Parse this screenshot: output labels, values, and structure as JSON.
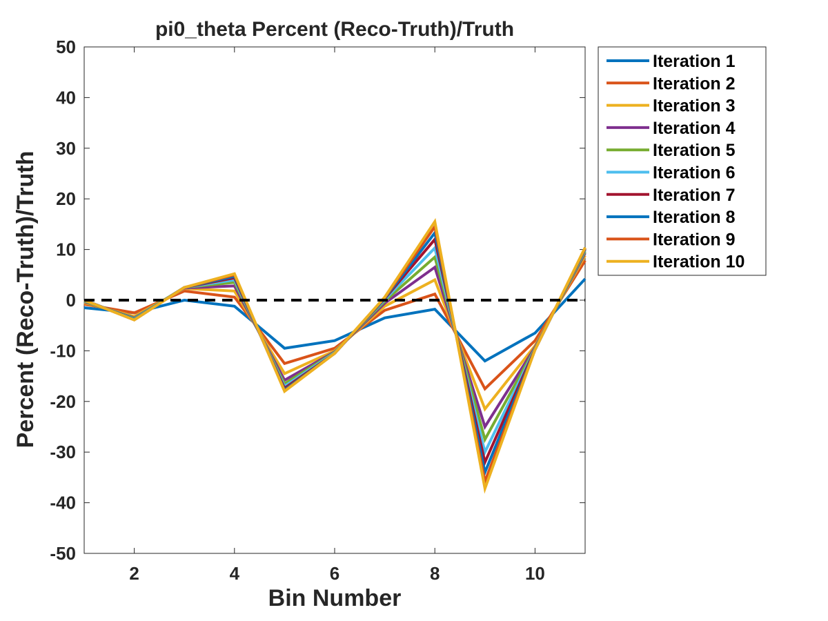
{
  "chart_data": {
    "type": "line",
    "title": "pi0_theta Percent (Reco-Truth)/Truth",
    "xlabel": "Bin Number",
    "ylabel": "Percent (Reco-Truth)/Truth",
    "xlim": [
      1,
      11
    ],
    "ylim": [
      -50,
      50
    ],
    "xticks": [
      2,
      4,
      6,
      8,
      10
    ],
    "yticks": [
      -50,
      -40,
      -30,
      -20,
      -10,
      0,
      10,
      20,
      30,
      40,
      50
    ],
    "grid": false,
    "legend_position": "outside-top-right",
    "reference_line": {
      "y": 0,
      "style": "dashed",
      "color": "#000000"
    },
    "x": [
      1,
      2,
      3,
      4,
      5,
      6,
      7,
      8,
      9,
      10,
      11
    ],
    "series": [
      {
        "name": "Iteration 1",
        "color": "#0072BD",
        "values": [
          -1.5,
          -2.5,
          0.0,
          -1.2,
          -9.5,
          -8.0,
          -3.5,
          -1.8,
          -12.0,
          -6.5,
          4.2
        ]
      },
      {
        "name": "Iteration 2",
        "color": "#D95319",
        "values": [
          -0.8,
          -2.5,
          1.8,
          0.6,
          -12.5,
          -9.5,
          -2.0,
          1.2,
          -17.5,
          -8.0,
          7.8
        ]
      },
      {
        "name": "Iteration 3",
        "color": "#EDB120",
        "values": [
          -0.5,
          -3.2,
          2.3,
          1.8,
          -14.5,
          -10.0,
          -1.2,
          4.0,
          -21.5,
          -9.0,
          8.8
        ]
      },
      {
        "name": "Iteration 4",
        "color": "#7E2F8E",
        "values": [
          -0.3,
          -3.5,
          2.4,
          2.8,
          -15.8,
          -10.2,
          -0.6,
          6.5,
          -25.0,
          -9.3,
          9.3
        ]
      },
      {
        "name": "Iteration 5",
        "color": "#77AC30",
        "values": [
          -0.2,
          -3.6,
          2.5,
          3.5,
          -16.5,
          -10.3,
          -0.2,
          8.5,
          -27.5,
          -9.5,
          9.6
        ]
      },
      {
        "name": "Iteration 6",
        "color": "#4DBEEE",
        "values": [
          -0.1,
          -3.7,
          2.5,
          4.0,
          -17.0,
          -10.4,
          0.1,
          10.3,
          -30.0,
          -9.6,
          9.9
        ]
      },
      {
        "name": "Iteration 7",
        "color": "#A2142F",
        "values": [
          0.0,
          -3.8,
          2.5,
          4.4,
          -17.4,
          -10.5,
          0.3,
          12.0,
          -32.0,
          -9.7,
          10.1
        ]
      },
      {
        "name": "Iteration 8",
        "color": "#0072BD",
        "values": [
          0.0,
          -3.8,
          2.5,
          4.7,
          -17.7,
          -10.5,
          0.4,
          13.3,
          -34.0,
          -9.8,
          10.2
        ]
      },
      {
        "name": "Iteration 9",
        "color": "#D95319",
        "values": [
          0.0,
          -3.9,
          2.5,
          5.0,
          -17.9,
          -10.5,
          0.5,
          14.5,
          -35.8,
          -9.8,
          10.3
        ]
      },
      {
        "name": "Iteration 10",
        "color": "#EDB120",
        "values": [
          0.0,
          -3.9,
          2.5,
          5.2,
          -18.0,
          -10.5,
          0.6,
          15.5,
          -37.2,
          -9.8,
          10.4
        ]
      }
    ]
  }
}
